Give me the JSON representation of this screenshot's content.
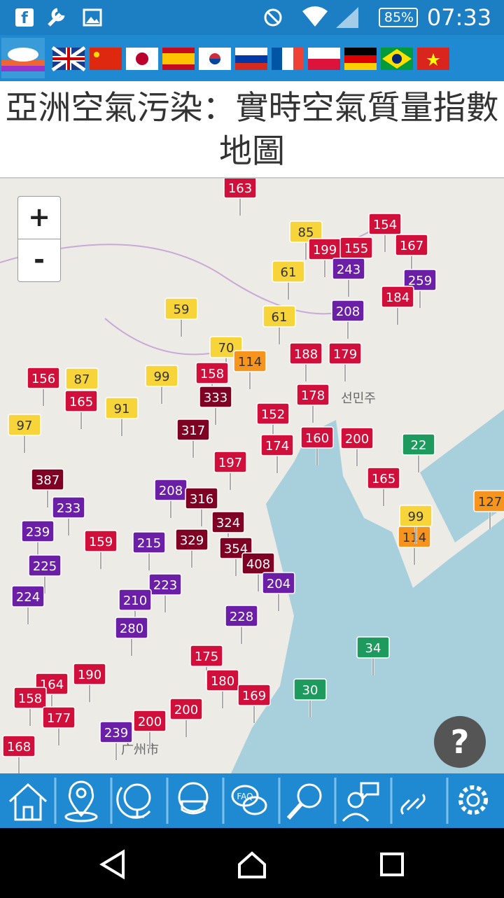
{
  "status_bar": {
    "battery": "85%",
    "time": "07:33"
  },
  "header": {
    "title": "亞洲空氣污染：實時空氣質量指數地圖"
  },
  "map": {
    "zoom_in": "+",
    "zoom_out": "-",
    "labels": [
      "선민주",
      "广州市"
    ],
    "markers": [
      163,
      85,
      154,
      199,
      155,
      167,
      243,
      61,
      259,
      184,
      59,
      61,
      208,
      188,
      179,
      70,
      114,
      156,
      87,
      158,
      99,
      333,
      165,
      91,
      152,
      178,
      97,
      317,
      174,
      160,
      200,
      22,
      197,
      387,
      233,
      208,
      316,
      165,
      324,
      239,
      159,
      215,
      329,
      354,
      114,
      99,
      127,
      408,
      225,
      223,
      204,
      224,
      210,
      228,
      280,
      34,
      190,
      175,
      164,
      180,
      30,
      169,
      158,
      177,
      200,
      200,
      239,
      168
    ]
  },
  "help": "?"
}
